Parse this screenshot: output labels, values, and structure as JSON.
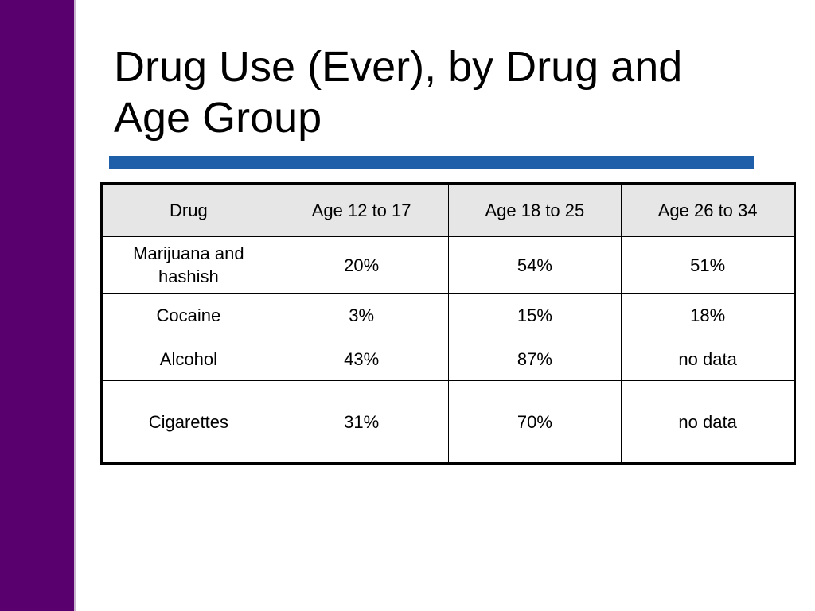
{
  "slide": {
    "title": "Drug Use (Ever), by Drug and Age Group",
    "colors": {
      "sidebar": "#5a006e",
      "rule": "#1f5faa",
      "header_fill": "#e6e6e6"
    }
  },
  "table": {
    "headers": [
      "Drug",
      "Age 12 to 17",
      "Age 18 to 25",
      "Age 26 to 34"
    ],
    "rows": [
      [
        "Marijuana and hashish",
        "20%",
        "54%",
        "51%"
      ],
      [
        "Cocaine",
        "3%",
        "15%",
        "18%"
      ],
      [
        "Alcohol",
        "43%",
        "87%",
        "no data"
      ],
      [
        "Cigarettes",
        "31%",
        "70%",
        "no data"
      ]
    ]
  }
}
